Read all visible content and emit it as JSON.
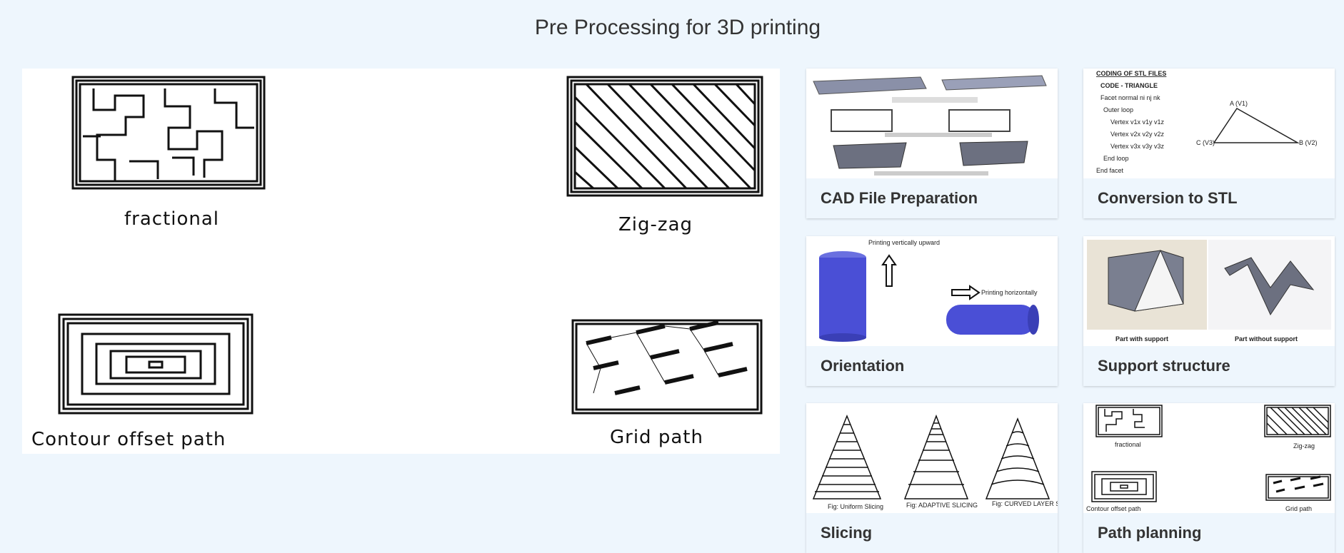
{
  "page": {
    "title": "Pre Processing for 3D printing"
  },
  "hero": {
    "captions": [
      "fractional",
      "Zig-zag",
      "Contour offset path",
      "Grid path"
    ]
  },
  "cards": [
    {
      "label": "CAD File Preparation"
    },
    {
      "label": "Conversion to STL",
      "thumb_text": [
        "CODING OF STL FILES",
        "CODE - TRIANGLE",
        "Facet normal ni nj nk",
        "Outer loop",
        "Vertex v1x v1y v1z",
        "Vertex v2x v2y v2z",
        "Vertex v3x v3y v3z",
        "End loop",
        "End facet"
      ],
      "vertex_labels": [
        "A (V1)",
        "B (V2)",
        "C (V3)"
      ]
    },
    {
      "label": "Orientation",
      "thumb_text": [
        "Printing vertically upward",
        "Printing horizontally"
      ]
    },
    {
      "label": "Support structure",
      "thumb_text": [
        "Part with support",
        "Part without support"
      ]
    },
    {
      "label": "Slicing",
      "thumb_text": [
        "Fig: Uniform Slicing",
        "Fig: ADAPTIVE SLICING",
        "Fig: CURVED LAYER SLICING"
      ]
    },
    {
      "label": "Path planning",
      "thumb_text": [
        "fractional",
        "Zig-zag",
        "Contour offset path",
        "Grid path"
      ]
    }
  ],
  "colors": {
    "background": "#eef6fd",
    "card_label_bg": "#eef6fd",
    "blue_part": "#4a4fd6",
    "gray_part": "#6c7080"
  }
}
